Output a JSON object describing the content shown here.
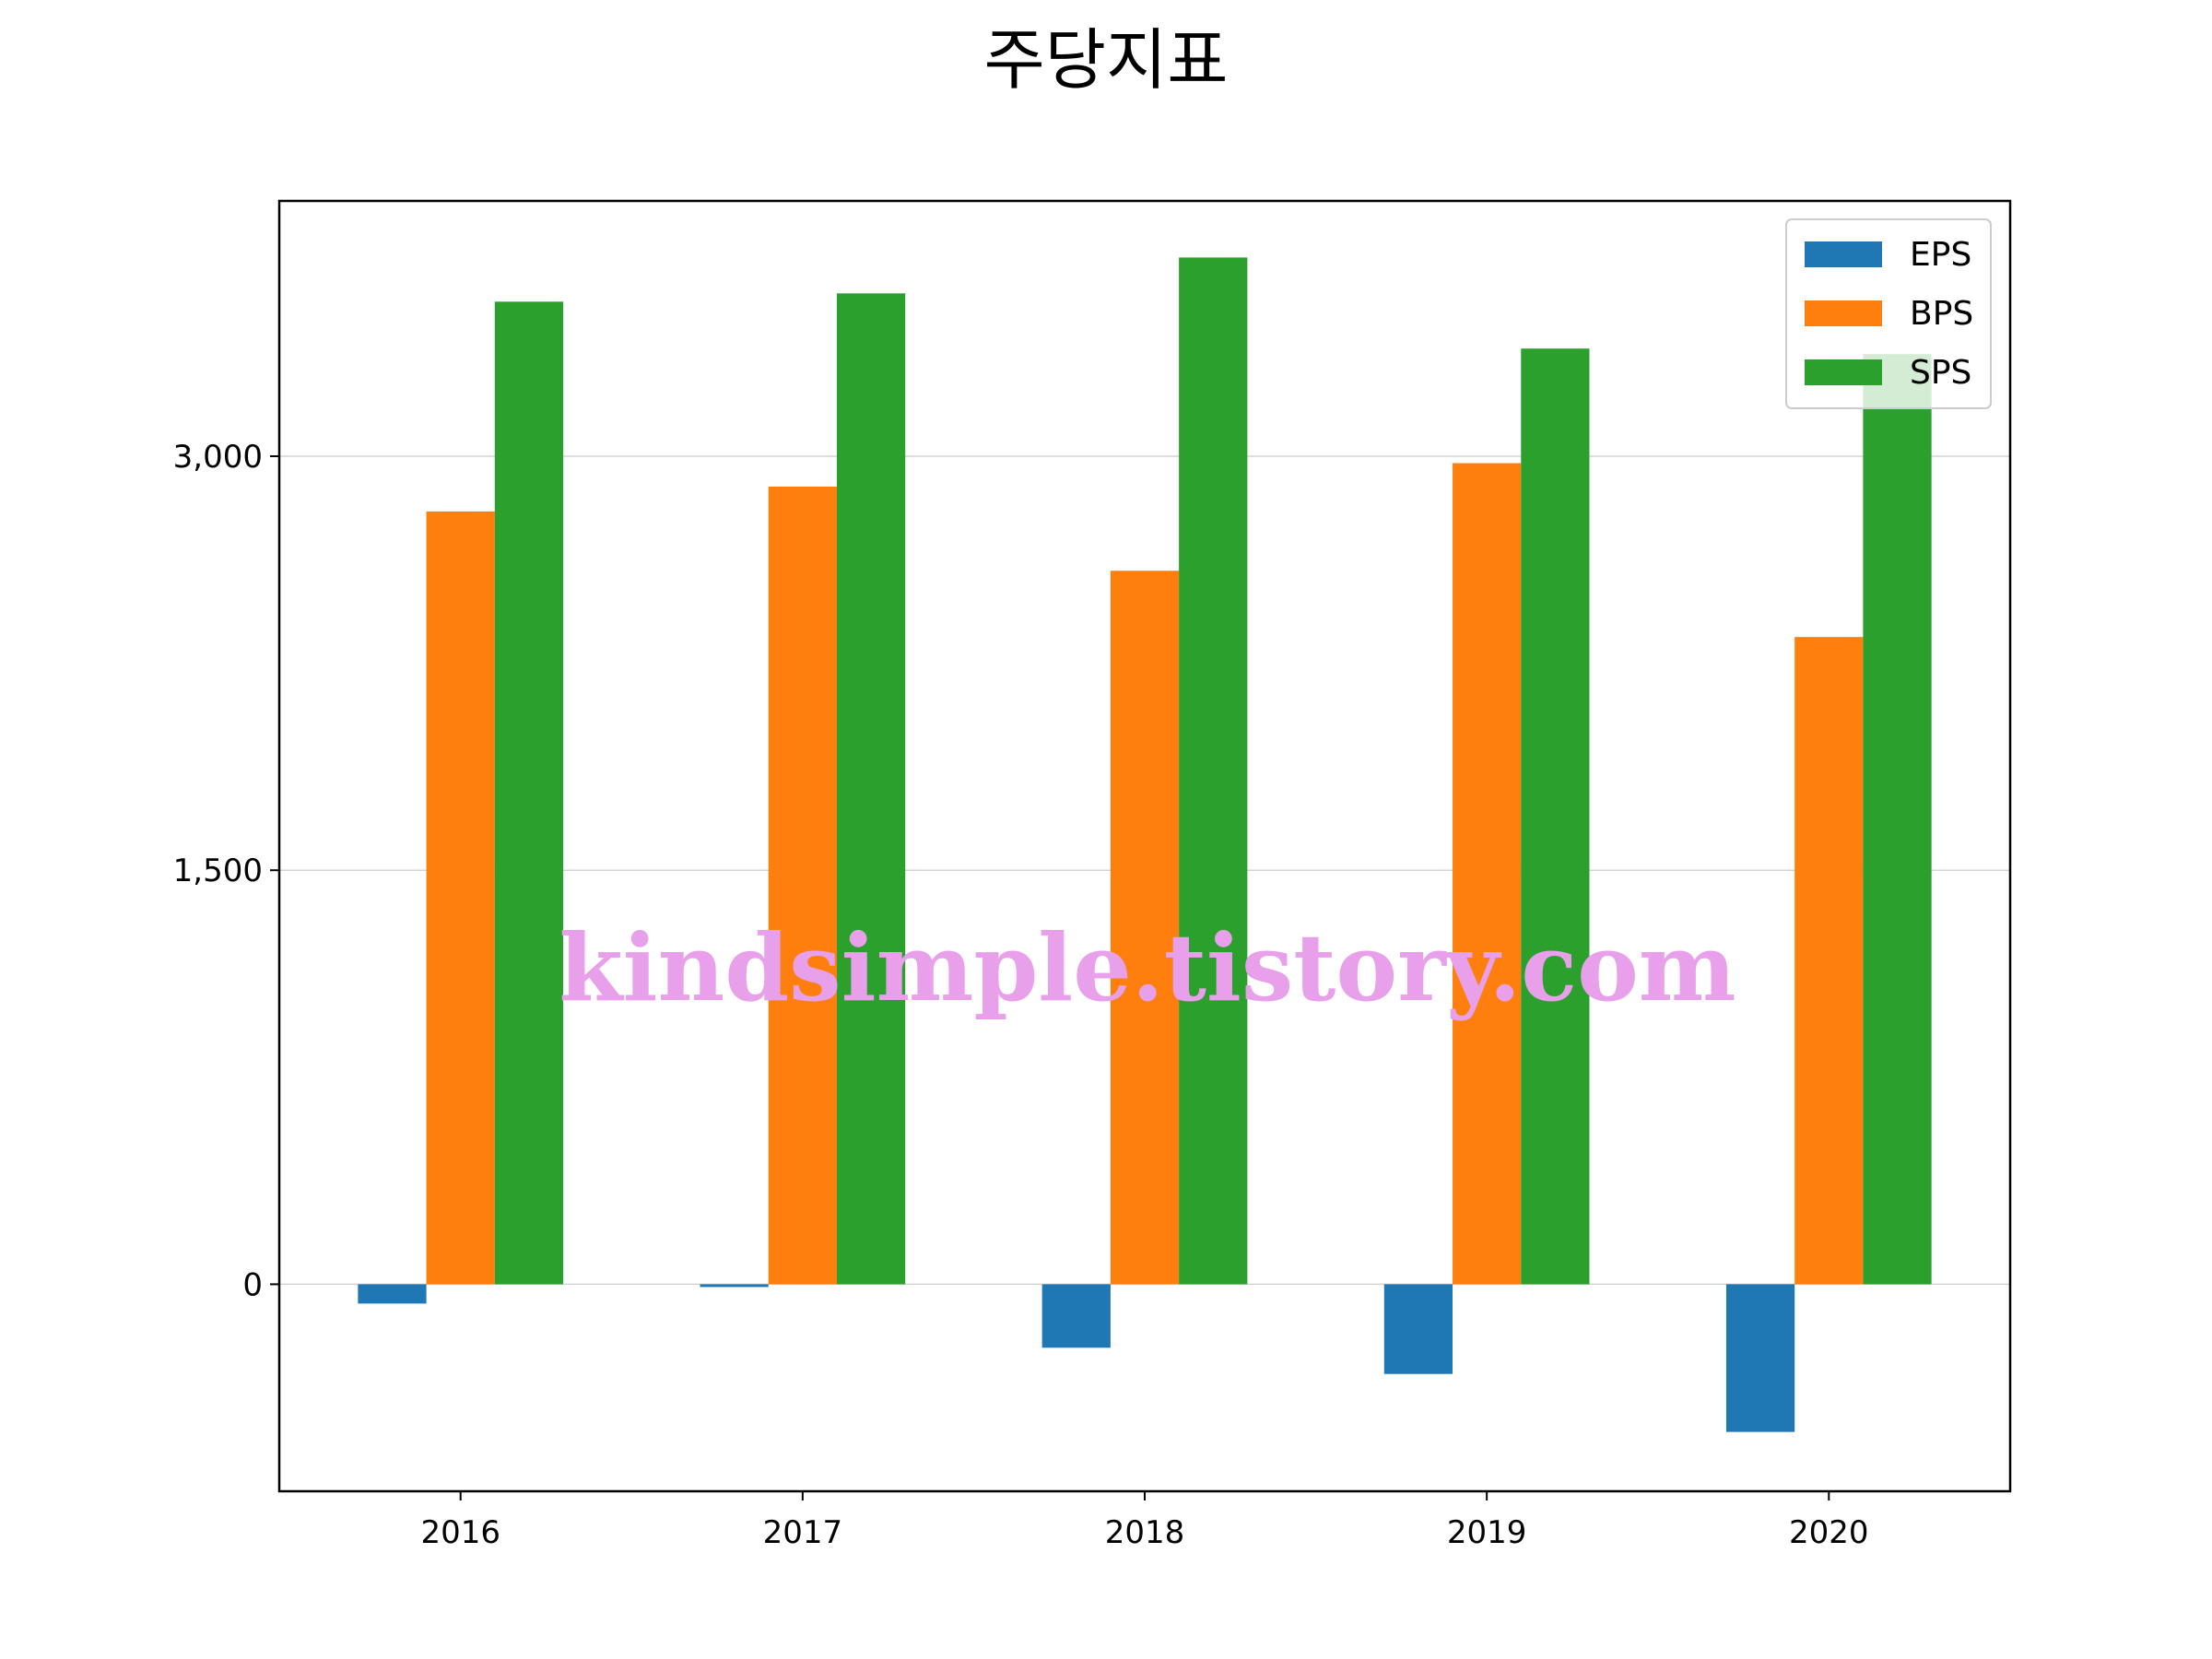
{
  "chart_data": {
    "type": "bar",
    "title": "주당지표",
    "xlabel": "",
    "ylabel": "",
    "categories": [
      "2016",
      "2017",
      "2018",
      "2019",
      "2020"
    ],
    "series": [
      {
        "name": "EPS",
        "color": "#1f77b4",
        "values": [
          -70,
          -10,
          -230,
          -325,
          -535
        ]
      },
      {
        "name": "BPS",
        "color": "#ff7f0e",
        "values": [
          2800,
          2890,
          2585,
          2975,
          2345
        ]
      },
      {
        "name": "SPS",
        "color": "#2ca02c",
        "values": [
          3560,
          3590,
          3720,
          3390,
          3370
        ]
      }
    ],
    "ylim": [
      -750,
      3925
    ],
    "yticks": [
      {
        "value": 0,
        "label": "0"
      },
      {
        "value": 1500,
        "label": "1,500"
      },
      {
        "value": 3000,
        "label": "3,000"
      }
    ],
    "grid": "horizontal",
    "legend_position": "top-right",
    "watermark": "kindsimple.tistory.com"
  }
}
